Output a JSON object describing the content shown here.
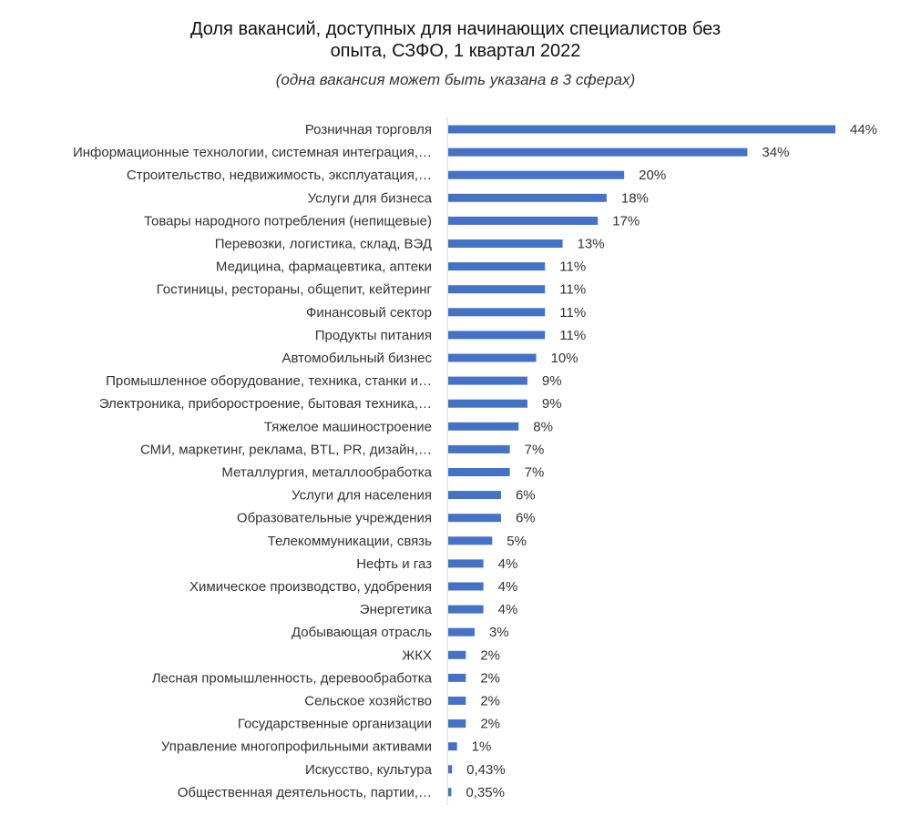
{
  "chart_data": {
    "type": "bar",
    "orientation": "horizontal",
    "title": "Доля вакансий, доступных для начинающих специалистов без опыта, СЗФО, 1 квартал 2022",
    "title_lines": [
      "Доля вакансий, доступных для начинающих специалистов без",
      "опыта, СЗФО, 1 квартал 2022"
    ],
    "subtitle": "(одна вакансия может быть указана в 3 сферах)",
    "xlabel": "",
    "ylabel": "",
    "xlim": [
      0,
      44
    ],
    "grid": false,
    "legend": "none",
    "bar_color": "#4472C4",
    "categories": [
      "Розничная торговля",
      "Информационные технологии, системная интеграция,…",
      "Строительство, недвижимость, эксплуатация,…",
      "Услуги для бизнеса",
      "Товары народного потребления (непищевые)",
      "Перевозки, логистика, склад, ВЭД",
      "Медицина, фармацевтика, аптеки",
      "Гостиницы, рестораны, общепит, кейтеринг",
      "Финансовый сектор",
      "Продукты питания",
      "Автомобильный бизнес",
      "Промышленное оборудование, техника, станки и…",
      "Электроника, приборостроение, бытовая техника,…",
      "Тяжелое машиностроение",
      "СМИ, маркетинг, реклама, BTL, PR, дизайн,…",
      "Металлургия, металлообработка",
      "Услуги для населения",
      "Образовательные учреждения",
      "Телекоммуникации, связь",
      "Нефть и газ",
      "Химическое производство, удобрения",
      "Энергетика",
      "Добывающая отрасль",
      "ЖКХ",
      "Лесная промышленность, деревообработка",
      "Сельское хозяйство",
      "Государственные организации",
      "Управление многопрофильными активами",
      "Искусство, культура",
      "Общественная деятельность, партии,…"
    ],
    "values": [
      44,
      34,
      20,
      18,
      17,
      13,
      11,
      11,
      11,
      11,
      10,
      9,
      9,
      8,
      7,
      7,
      6,
      6,
      5,
      4,
      4,
      4,
      3,
      2,
      2,
      2,
      2,
      1,
      0.43,
      0.35
    ],
    "value_labels": [
      "44%",
      "34%",
      "20%",
      "18%",
      "17%",
      "13%",
      "11%",
      "11%",
      "11%",
      "11%",
      "10%",
      "9%",
      "9%",
      "8%",
      "7%",
      "7%",
      "6%",
      "6%",
      "5%",
      "4%",
      "4%",
      "4%",
      "3%",
      "2%",
      "2%",
      "2%",
      "2%",
      "1%",
      "0,43%",
      "0,35%"
    ]
  }
}
